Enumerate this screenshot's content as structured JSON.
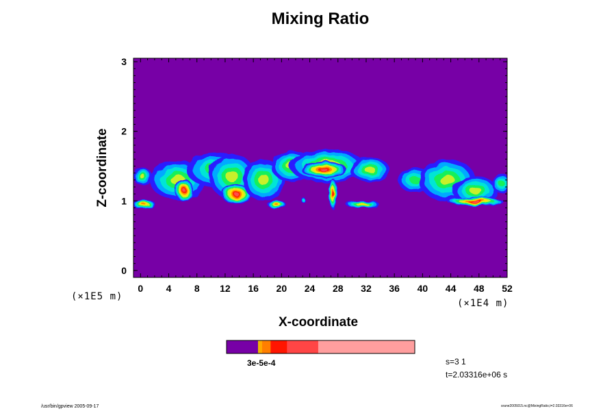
{
  "footer": {
    "left": "/usr/bin/gpview 2005-09-17",
    "right": "srane2005015.nc@MixingRatio,t=2.03316e+06"
  },
  "chart_data": {
    "type": "heatmap",
    "title": "Mixing Ratio",
    "xlabel": "X-coordinate",
    "ylabel": "Z-coordinate",
    "x_unit": "(×1E4 m)",
    "y_unit": "(×1E5 m)",
    "xlim": [
      -1,
      52
    ],
    "ylim": [
      -0.1,
      3.05
    ],
    "x_ticks": [
      0,
      4,
      8,
      12,
      16,
      20,
      24,
      28,
      32,
      36,
      40,
      44,
      48,
      52
    ],
    "y_ticks": [
      0,
      1,
      2,
      3
    ],
    "background_color": "#7700a6",
    "levels": [
      {
        "name": "background",
        "color": "#7700a6"
      },
      {
        "name": "blue",
        "color": "#2a1cff"
      },
      {
        "name": "sky",
        "color": "#00aaff"
      },
      {
        "name": "cyan",
        "color": "#00e5d6"
      },
      {
        "name": "green",
        "color": "#15f05a"
      },
      {
        "name": "yellow-green",
        "color": "#c8f02a"
      },
      {
        "name": "yellow",
        "color": "#ffe400"
      },
      {
        "name": "orange",
        "color": "#ff8c00"
      },
      {
        "name": "red",
        "color": "#ff2a00"
      },
      {
        "name": "coral",
        "color": "#ff4d4d"
      },
      {
        "name": "pink",
        "color": "#ff9b9b"
      }
    ],
    "features": [
      {
        "x": 0.3,
        "z": 1.35,
        "rx": 1.3,
        "rz": 0.13,
        "peak": 5
      },
      {
        "x": 0.5,
        "z": 0.95,
        "rx": 1.6,
        "rz": 0.07,
        "peak": 7
      },
      {
        "x": 5.3,
        "z": 1.3,
        "rx": 4.0,
        "rz": 0.28,
        "peak": 5
      },
      {
        "x": 6.2,
        "z": 1.15,
        "rx": 1.3,
        "rz": 0.16,
        "peak": 9
      },
      {
        "x": 10.5,
        "z": 1.45,
        "rx": 4.0,
        "rz": 0.25,
        "peak": 4
      },
      {
        "x": 13.0,
        "z": 1.35,
        "rx": 3.3,
        "rz": 0.32,
        "peak": 5
      },
      {
        "x": 13.6,
        "z": 1.1,
        "rx": 2.2,
        "rz": 0.14,
        "peak": 9
      },
      {
        "x": 17.5,
        "z": 1.3,
        "rx": 3.0,
        "rz": 0.3,
        "peak": 5
      },
      {
        "x": 19.3,
        "z": 0.95,
        "rx": 1.3,
        "rz": 0.06,
        "peak": 7
      },
      {
        "x": 23.0,
        "z": 1.02,
        "rx": 0.3,
        "rz": 0.04,
        "peak": 3
      },
      {
        "x": 21.5,
        "z": 1.5,
        "rx": 3.0,
        "rz": 0.22,
        "peak": 5
      },
      {
        "x": 26.5,
        "z": 1.5,
        "rx": 5.3,
        "rz": 0.24,
        "peak": 6
      },
      {
        "x": 26.0,
        "z": 1.45,
        "rx": 3.2,
        "rz": 0.12,
        "peak": 9
      },
      {
        "x": 27.3,
        "z": 1.1,
        "rx": 0.6,
        "rz": 0.22,
        "peak": 8
      },
      {
        "x": 32.5,
        "z": 1.45,
        "rx": 2.8,
        "rz": 0.18,
        "peak": 5
      },
      {
        "x": 31.5,
        "z": 0.95,
        "rx": 2.4,
        "rz": 0.05,
        "peak": 6
      },
      {
        "x": 39.0,
        "z": 1.3,
        "rx": 2.5,
        "rz": 0.18,
        "peak": 4
      },
      {
        "x": 43.5,
        "z": 1.3,
        "rx": 4.0,
        "rz": 0.3,
        "peak": 5
      },
      {
        "x": 47.5,
        "z": 1.15,
        "rx": 3.2,
        "rz": 0.2,
        "peak": 5
      },
      {
        "x": 47.5,
        "z": 0.99,
        "rx": 4.0,
        "rz": 0.06,
        "peak": 9
      },
      {
        "x": 51.2,
        "z": 1.25,
        "rx": 1.4,
        "rz": 0.14,
        "peak": 4
      }
    ],
    "colorbar": {
      "label": "3e-5e-4",
      "segments": [
        {
          "fraction": 0.167,
          "color": "#7700a6"
        },
        {
          "fraction": 0.006,
          "color": "#e0c000"
        },
        {
          "fraction": 0.016,
          "color": "#ffaa00"
        },
        {
          "fraction": 0.045,
          "color": "#ff7f00"
        },
        {
          "fraction": 0.087,
          "color": "#ff1500"
        },
        {
          "fraction": 0.166,
          "color": "#ff4545"
        },
        {
          "fraction": 0.513,
          "color": "#ff9e9e"
        }
      ]
    },
    "step_text": "s=3 1",
    "time_text": "t=2.03316e+06 s"
  }
}
